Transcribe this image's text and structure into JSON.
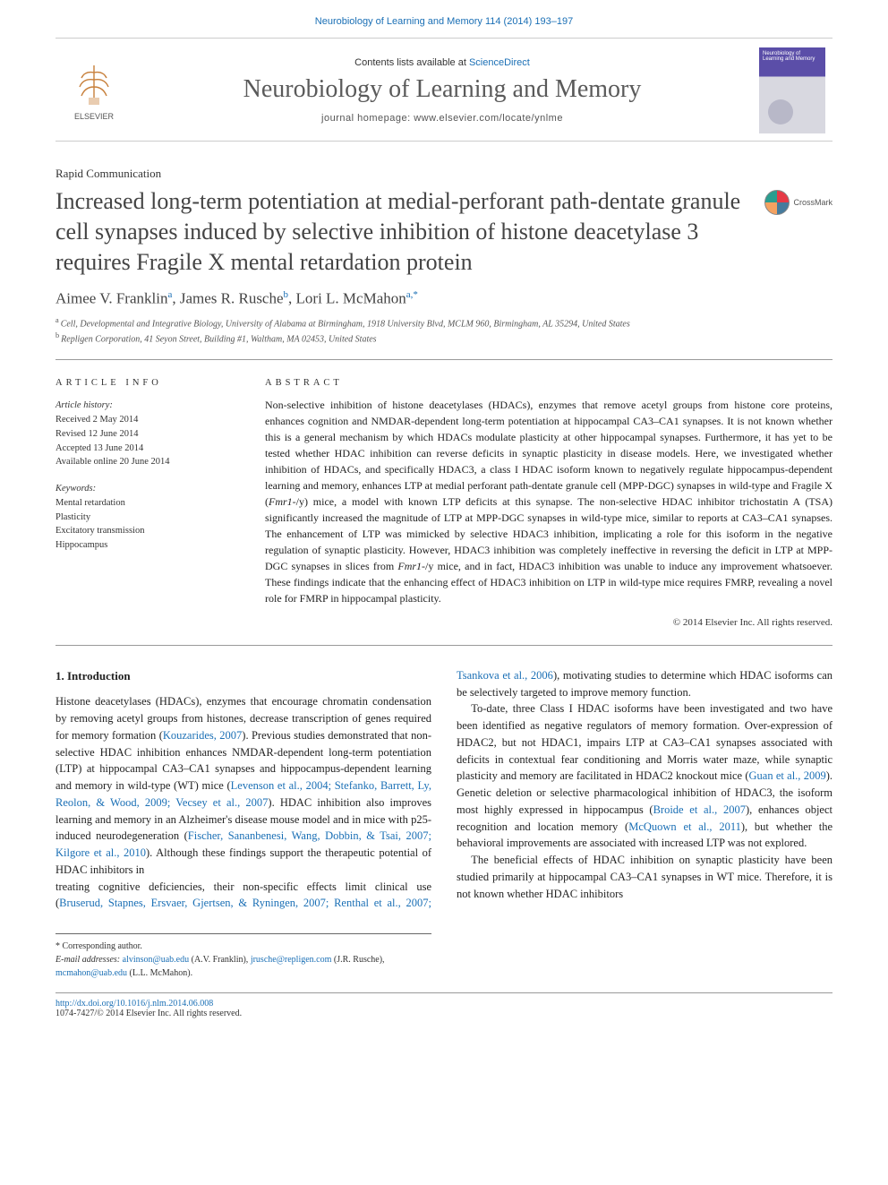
{
  "header": {
    "citation": "Neurobiology of Learning and Memory 114 (2014) 193–197",
    "contents_prefix": "Contents lists available at ",
    "contents_link": "ScienceDirect",
    "journal_name": "Neurobiology of Learning and Memory",
    "homepage_label": "journal homepage: www.elsevier.com/locate/ynlme",
    "publisher": "ELSEVIER",
    "cover_text": "Neurobiology of Learning and Memory"
  },
  "article": {
    "type": "Rapid Communication",
    "title": "Increased long-term potentiation at medial-perforant path-dentate granule cell synapses induced by selective inhibition of histone deacetylase 3 requires Fragile X mental retardation protein",
    "crossmark": "CrossMark",
    "authors_html": "Aimee V. Franklin<sup>a</sup>, James R. Rusche<sup>b</sup>, Lori L. McMahon<sup>a,*</sup>",
    "affiliations": [
      {
        "sup": "a",
        "text": "Cell, Developmental and Integrative Biology, University of Alabama at Birmingham, 1918 University Blvd, MCLM 960, Birmingham, AL 35294, United States"
      },
      {
        "sup": "b",
        "text": "Repligen Corporation, 41 Seyon Street, Building #1, Waltham, MA 02453, United States"
      }
    ]
  },
  "info": {
    "heading": "ARTICLE INFO",
    "history_label": "Article history:",
    "history": [
      "Received 2 May 2014",
      "Revised 12 June 2014",
      "Accepted 13 June 2014",
      "Available online 20 June 2014"
    ],
    "keywords_label": "Keywords:",
    "keywords": [
      "Mental retardation",
      "Plasticity",
      "Excitatory transmission",
      "Hippocampus"
    ]
  },
  "abstract": {
    "heading": "ABSTRACT",
    "text": "Non-selective inhibition of histone deacetylases (HDACs), enzymes that remove acetyl groups from histone core proteins, enhances cognition and NMDAR-dependent long-term potentiation at hippocampal CA3–CA1 synapses. It is not known whether this is a general mechanism by which HDACs modulate plasticity at other hippocampal synapses. Furthermore, it has yet to be tested whether HDAC inhibition can reverse deficits in synaptic plasticity in disease models. Here, we investigated whether inhibition of HDACs, and specifically HDAC3, a class I HDAC isoform known to negatively regulate hippocampus-dependent learning and memory, enhances LTP at medial perforant path-dentate granule cell (MPP-DGC) synapses in wild-type and Fragile X (Fmr1-/y) mice, a model with known LTP deficits at this synapse. The non-selective HDAC inhibitor trichostatin A (TSA) significantly increased the magnitude of LTP at MPP-DGC synapses in wild-type mice, similar to reports at CA3–CA1 synapses. The enhancement of LTP was mimicked by selective HDAC3 inhibition, implicating a role for this isoform in the negative regulation of synaptic plasticity. However, HDAC3 inhibition was completely ineffective in reversing the deficit in LTP at MPP-DGC synapses in slices from Fmr1-/y mice, and in fact, HDAC3 inhibition was unable to induce any improvement whatsoever. These findings indicate that the enhancing effect of HDAC3 inhibition on LTP in wild-type mice requires FMRP, revealing a novel role for FMRP in hippocampal plasticity.",
    "copyright": "© 2014 Elsevier Inc. All rights reserved."
  },
  "body": {
    "heading": "1. Introduction",
    "p1_pre": "Histone deacetylases (HDACs), enzymes that encourage chromatin condensation by removing acetyl groups from histones, decrease transcription of genes required for memory formation (",
    "p1_cite1": "Kouzarides, 2007",
    "p1_mid1": "). Previous studies demonstrated that non-selective HDAC inhibition enhances NMDAR-dependent long-term potentiation (LTP) at hippocampal CA3–CA1 synapses and hippocampus-dependent learning and memory in wild-type (WT) mice (",
    "p1_cite2": "Levenson et al., 2004; Stefanko, Barrett, Ly, Reolon, & Wood, 2009; Vecsey et al., 2007",
    "p1_mid2": "). HDAC inhibition also improves learning and memory in an Alzheimer's disease mouse model and in mice with p25-induced neurodegeneration (",
    "p1_cite3": "Fischer, Sananbenesi, Wang, Dobbin, & Tsai, 2007; Kilgore et al., 2010",
    "p1_post": "). Although these findings support the therapeutic potential of HDAC inhibitors in",
    "p2_pre": "treating cognitive deficiencies, their non-specific effects limit clinical use (",
    "p2_cite1": "Bruserud, Stapnes, Ersvaer, Gjertsen, & Ryningen, 2007; Renthal et al., 2007; Tsankova et al., 2006",
    "p2_post": "), motivating studies to determine which HDAC isoforms can be selectively targeted to improve memory function.",
    "p3_pre": "To-date, three Class I HDAC isoforms have been investigated and two have been identified as negative regulators of memory formation. Over-expression of HDAC2, but not HDAC1, impairs LTP at CA3–CA1 synapses associated with deficits in contextual fear conditioning and Morris water maze, while synaptic plasticity and memory are facilitated in HDAC2 knockout mice (",
    "p3_cite1": "Guan et al., 2009",
    "p3_mid1": "). Genetic deletion or selective pharmacological inhibition of HDAC3, the isoform most highly expressed in hippocampus (",
    "p3_cite2": "Broide et al., 2007",
    "p3_mid2": "), enhances object recognition and location memory (",
    "p3_cite3": "McQuown et al., 2011",
    "p3_post": "), but whether the behavioral improvements are associated with increased LTP was not explored.",
    "p4": "The beneficial effects of HDAC inhibition on synaptic plasticity have been studied primarily at hippocampal CA3–CA1 synapses in WT mice. Therefore, it is not known whether HDAC inhibitors"
  },
  "footnotes": {
    "corr": "* Corresponding author.",
    "email_label": "E-mail addresses:",
    "emails": [
      {
        "addr": "alvinson@uab.edu",
        "who": "(A.V. Franklin),"
      },
      {
        "addr": "jrusche@repligen.com",
        "who": "(J.R. Rusche),"
      },
      {
        "addr": "mcmahon@uab.edu",
        "who": "(L.L. McMahon)."
      }
    ]
  },
  "doiblock": {
    "doi": "http://dx.doi.org/10.1016/j.nlm.2014.06.008",
    "issn": "1074-7427/© 2014 Elsevier Inc. All rights reserved."
  },
  "colors": {
    "link": "#1a6fb5",
    "text": "#1a1a1a",
    "muted": "#555555",
    "rule": "#999999"
  }
}
